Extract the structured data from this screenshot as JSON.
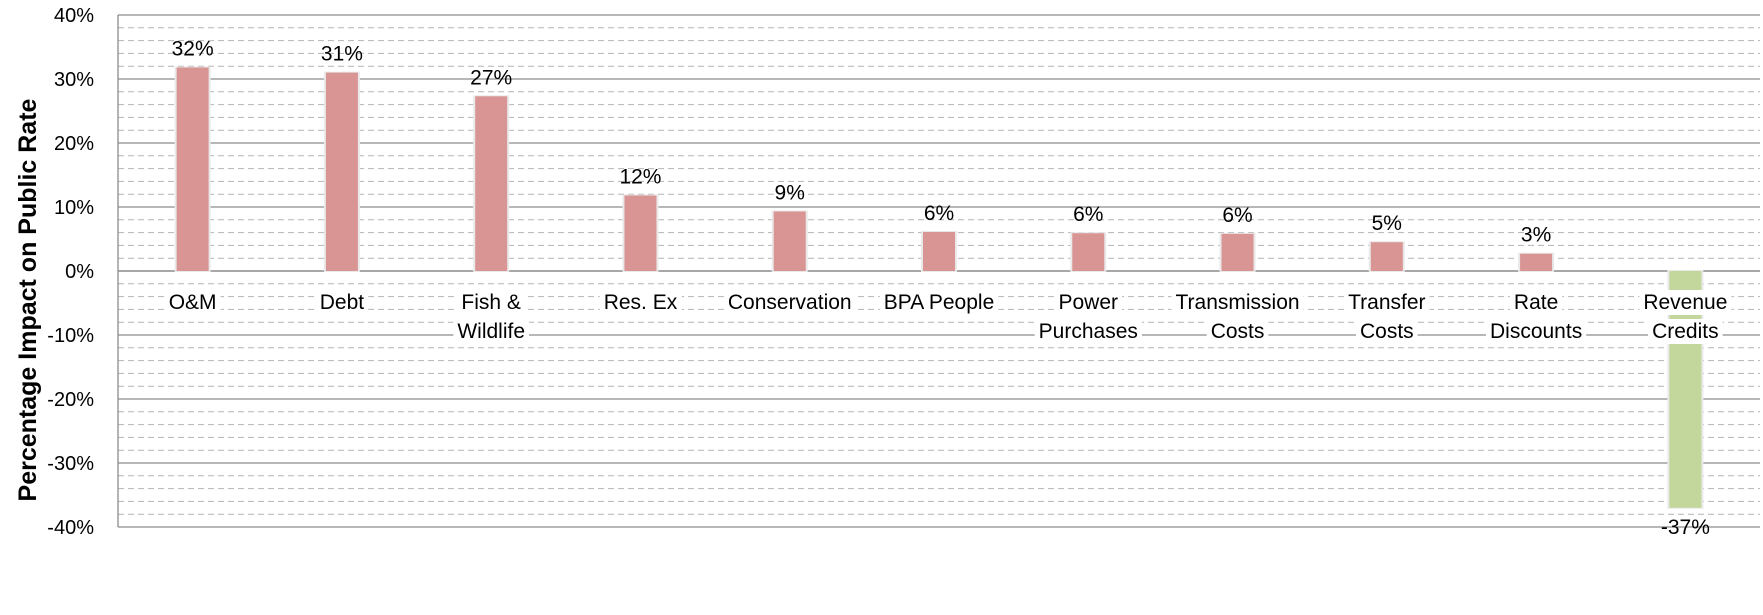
{
  "chart_data": {
    "type": "bar",
    "title": "",
    "xlabel": "",
    "ylabel": "Percentage Impact on Public Rate",
    "ylim": [
      -40,
      40
    ],
    "y_ticks": [
      40,
      30,
      20,
      10,
      0,
      -10,
      -20,
      -30,
      -40
    ],
    "y_tick_labels": [
      "40%",
      "30%",
      "20%",
      "10%",
      "0%",
      "-10%",
      "-20%",
      "-30%",
      "-40%"
    ],
    "grid": "major solid, minor dashed",
    "legend": "none",
    "categories": [
      [
        "O&M"
      ],
      [
        "Debt"
      ],
      [
        "Fish &",
        "Wildlife"
      ],
      [
        "Res. Ex"
      ],
      [
        "Conservation"
      ],
      [
        "BPA People"
      ],
      [
        "Power",
        "Purchases"
      ],
      [
        "Transmission",
        "Costs"
      ],
      [
        "Transfer",
        "Costs"
      ],
      [
        "Rate",
        "Discounts"
      ],
      [
        "Revenue",
        "Credits"
      ]
    ],
    "values": [
      31.8,
      31.0,
      27.3,
      11.8,
      9.3,
      6.1,
      5.9,
      5.8,
      4.5,
      2.7,
      -37.0
    ],
    "data_labels": [
      "32%",
      "31%",
      "27%",
      "12%",
      "9%",
      "6%",
      "6%",
      "6%",
      "5%",
      "3%",
      "-37%"
    ],
    "colors": {
      "positive": "#d99594",
      "negative": "#c3d69b",
      "major_grid": "#8c8c8c",
      "minor_grid": "#b4b4b4"
    }
  }
}
